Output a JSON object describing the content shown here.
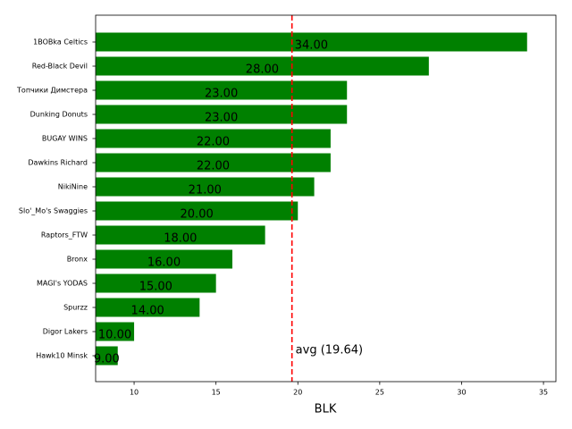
{
  "chart_data": {
    "type": "barh",
    "x_label": "BLK",
    "categories": [
      "1BOBka Celtics",
      "Red-Black Devil",
      "Топчики Димстера",
      "Dunking Donuts",
      "BUGAY WINS",
      "Dawkins Richard",
      "NikiNine",
      "Slo'_Mo's Swaggies",
      "Raptors_FTW",
      "Bronx",
      "MAGI's YODAS",
      "Spurzz",
      "Digor Lakers",
      "Hawk10 Minsk"
    ],
    "values": [
      34,
      28,
      23,
      23,
      22,
      22,
      21,
      20,
      18,
      16,
      15,
      14,
      10,
      9
    ],
    "value_labels": [
      "34.00",
      "28.00",
      "23.00",
      "23.00",
      "22.00",
      "22.00",
      "21.00",
      "20.00",
      "18.00",
      "16.00",
      "15.00",
      "14.00",
      "10.00",
      "9.00"
    ],
    "color": "#008000",
    "xlim": [
      7.65,
      35.76
    ],
    "xticks": [
      10,
      15,
      20,
      25,
      30,
      35
    ],
    "avg_line": {
      "value": 19.64,
      "label": "avg (19.64)",
      "color": "#ff0000"
    }
  }
}
